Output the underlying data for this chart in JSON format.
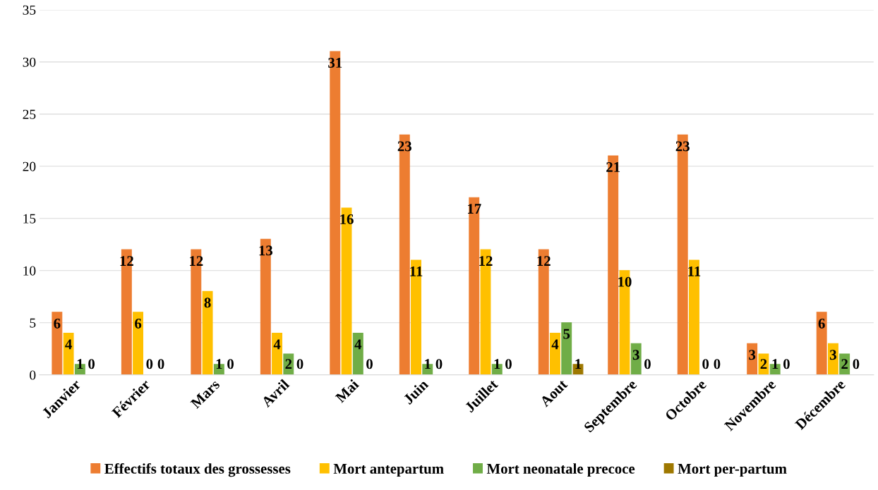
{
  "chart_data": {
    "type": "bar",
    "categories": [
      "Janvier",
      "Février",
      "Mars",
      "Avril",
      "Mai",
      "Juin",
      "Juillet",
      "Aout",
      "Septembre",
      "Octobre",
      "Novembre",
      "Décembre"
    ],
    "series": [
      {
        "name": "Effectifs totaux des grossesses",
        "color": "#ed7d31",
        "values": [
          6,
          12,
          12,
          13,
          31,
          23,
          17,
          12,
          21,
          23,
          3,
          6
        ]
      },
      {
        "name": "Mort antepartum",
        "color": "#ffc000",
        "values": [
          4,
          6,
          8,
          4,
          16,
          11,
          12,
          4,
          10,
          11,
          2,
          3
        ]
      },
      {
        "name": "Mort neonatale precoce",
        "color": "#70ad47",
        "values": [
          1,
          0,
          1,
          2,
          4,
          1,
          1,
          5,
          3,
          0,
          1,
          2
        ]
      },
      {
        "name": "Mort per-partum",
        "color": "#9e7800",
        "values": [
          0,
          0,
          0,
          0,
          0,
          0,
          0,
          1,
          0,
          0,
          0,
          0
        ]
      }
    ],
    "ylim": [
      0,
      35
    ],
    "yticks": [
      0,
      5,
      10,
      15,
      20,
      25,
      30,
      35
    ],
    "grid": "y",
    "legend": "bottom",
    "data_labels": true
  }
}
